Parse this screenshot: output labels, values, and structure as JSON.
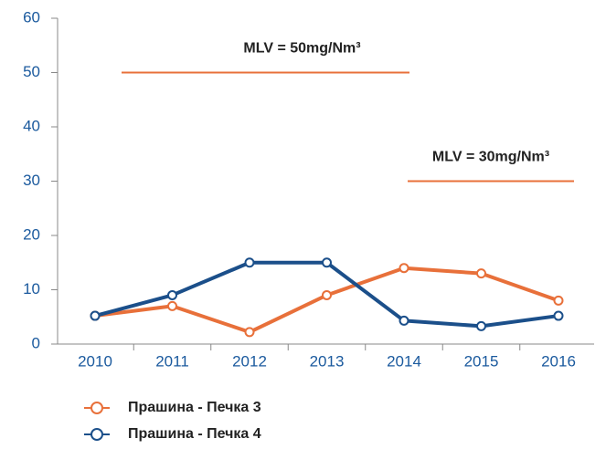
{
  "chart_data": {
    "type": "line",
    "categories": [
      "2010",
      "2011",
      "2012",
      "2013",
      "2014",
      "2015",
      "2016"
    ],
    "series": [
      {
        "name": "Прашина - Печка 3",
        "color": "#e8703a",
        "values": [
          5.2,
          7,
          2.2,
          9,
          14,
          13,
          8
        ]
      },
      {
        "name": "Прашина - Печка 4",
        "color": "#1b4f8a",
        "values": [
          5.2,
          9,
          15,
          15,
          4.3,
          3.3,
          5.2
        ]
      }
    ],
    "ylim": [
      0,
      60
    ],
    "yticks": [
      0,
      10,
      20,
      30,
      40,
      50,
      60
    ],
    "grid": false,
    "annotations": [
      {
        "label": "MLV = 50mg/Nm³",
        "value": 50,
        "color": "#e8703a"
      },
      {
        "label": "MLV = 30mg/Nm³",
        "value": 30,
        "color": "#e8703a"
      }
    ]
  }
}
